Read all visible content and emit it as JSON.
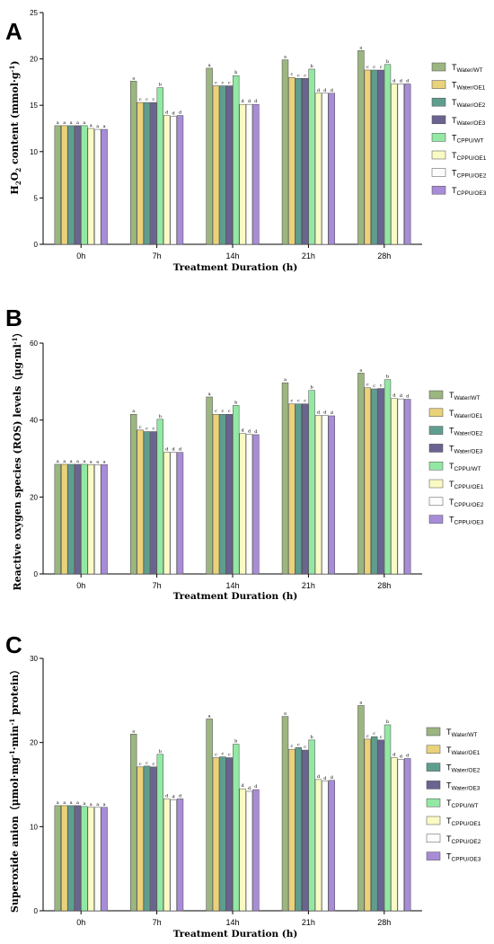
{
  "colors": {
    "Water/WT": "#9bb680",
    "Water/OE1": "#ead27a",
    "Water/OE2": "#5f9e8f",
    "Water/OE3": "#6a6491",
    "CPPU/WT": "#93e8a3",
    "CPPU/OE1": "#fafac4",
    "CPPU/OE2": "#fcfcfc",
    "CPPU/OE3": "#a88cd8"
  },
  "chart_data": [
    {
      "type": "bar",
      "panel": "A",
      "ylabel": "H2O2 content (mmol·g-1)",
      "ylabel_parts": {
        "a": "H",
        "b": "2",
        "c": "O",
        "d": "2",
        "e": " content (mmol·g",
        "f": "-1",
        "g": ")"
      },
      "xlabel": "Treatment Duration (h)",
      "categories": [
        "0h",
        "7h",
        "14h",
        "21h",
        "28h"
      ],
      "ylim": [
        0,
        25
      ],
      "yticks": [
        0,
        5,
        10,
        15,
        20,
        25
      ],
      "legend_position": "right",
      "series": [
        {
          "name": "Water/WT",
          "legend": {
            "main": "T",
            "sub": "Water/WT"
          },
          "colorKey": "Water/WT",
          "values": [
            12.8,
            17.6,
            19.0,
            19.9,
            20.9
          ],
          "labels": [
            "a",
            "a",
            "a",
            "a",
            "a"
          ]
        },
        {
          "name": "Water/OE1",
          "legend": {
            "main": "T",
            "sub": "Water/OE1"
          },
          "colorKey": "Water/OE1",
          "values": [
            12.8,
            15.3,
            17.1,
            18.0,
            18.8
          ],
          "labels": [
            "a",
            "c",
            "c",
            "c",
            "c"
          ]
        },
        {
          "name": "Water/OE2",
          "legend": {
            "main": "T",
            "sub": "Water/OE2"
          },
          "colorKey": "Water/OE2",
          "values": [
            12.8,
            15.3,
            17.1,
            17.9,
            18.8
          ],
          "labels": [
            "a",
            "c",
            "c",
            "c",
            "c"
          ]
        },
        {
          "name": "Water/OE3",
          "legend": {
            "main": "T",
            "sub": "Water/OE3"
          },
          "colorKey": "Water/OE3",
          "values": [
            12.8,
            15.3,
            17.1,
            17.9,
            18.8
          ],
          "labels": [
            "a",
            "c",
            "c",
            "c",
            "c"
          ]
        },
        {
          "name": "CPPU/WT",
          "legend": {
            "main": "T",
            "sub": "CPPU/WT"
          },
          "colorKey": "CPPU/WT",
          "values": [
            12.8,
            16.9,
            18.2,
            18.9,
            19.4
          ],
          "labels": [
            "a",
            "b",
            "b",
            "b",
            "b"
          ]
        },
        {
          "name": "CPPU/OE1",
          "legend": {
            "main": "T",
            "sub": "CPPU/OE1"
          },
          "colorKey": "CPPU/OE1",
          "values": [
            12.5,
            13.9,
            15.1,
            16.3,
            17.3
          ],
          "labels": [
            "a",
            "d",
            "d",
            "d",
            "d"
          ]
        },
        {
          "name": "CPPU/OE2",
          "legend": {
            "main": "T",
            "sub": "CPPU/OE2"
          },
          "colorKey": "CPPU/OE2",
          "values": [
            12.4,
            13.8,
            15.1,
            16.3,
            17.3
          ],
          "labels": [
            "a",
            "d",
            "d",
            "d",
            "d"
          ]
        },
        {
          "name": "CPPU/OE3",
          "legend": {
            "main": "T",
            "sub": "CPPU/OE3"
          },
          "colorKey": "CPPU/OE3",
          "values": [
            12.4,
            13.9,
            15.1,
            16.3,
            17.3
          ],
          "labels": [
            "a",
            "d",
            "d",
            "d",
            "d"
          ]
        }
      ]
    },
    {
      "type": "bar",
      "panel": "B",
      "ylabel": "Reactive oxygen species (ROS) levels（μg·ml-1）",
      "ylabel_parts": {
        "a": "Reactive oxygen species (ROS) levels（μg·ml",
        "b": "-1",
        "c": "）"
      },
      "xlabel": "Treatment Duration (h)",
      "categories": [
        "0h",
        "7h",
        "14h",
        "21h",
        "28h"
      ],
      "ylim": [
        0,
        60
      ],
      "yticks": [
        0,
        20,
        40,
        60
      ],
      "legend_position": "right",
      "series": [
        {
          "name": "Water/WT",
          "legend": {
            "main": "T",
            "sub": "Water/WT"
          },
          "colorKey": "Water/WT",
          "values": [
            28.5,
            41.5,
            46.0,
            49.7,
            52.2
          ],
          "labels": [
            "a",
            "a",
            "a",
            "a",
            "a"
          ]
        },
        {
          "name": "Water/OE1",
          "legend": {
            "main": "T",
            "sub": "Water/OE1"
          },
          "colorKey": "Water/OE1",
          "values": [
            28.5,
            37.4,
            41.5,
            44.2,
            48.4
          ],
          "labels": [
            "a",
            "c",
            "c",
            "c",
            "c"
          ]
        },
        {
          "name": "Water/OE2",
          "legend": {
            "main": "T",
            "sub": "Water/OE2"
          },
          "colorKey": "Water/OE2",
          "values": [
            28.5,
            37.0,
            41.5,
            44.2,
            48.1
          ],
          "labels": [
            "a",
            "c",
            "c",
            "c",
            "c"
          ]
        },
        {
          "name": "Water/OE3",
          "legend": {
            "main": "T",
            "sub": "Water/OE3"
          },
          "colorKey": "Water/OE3",
          "values": [
            28.5,
            37.0,
            41.5,
            44.2,
            48.2
          ],
          "labels": [
            "a",
            "c",
            "c",
            "c",
            "c"
          ]
        },
        {
          "name": "CPPU/WT",
          "legend": {
            "main": "T",
            "sub": "CPPU/WT"
          },
          "colorKey": "CPPU/WT",
          "values": [
            28.5,
            40.2,
            43.8,
            47.7,
            50.5
          ],
          "labels": [
            "a",
            "b",
            "b",
            "b",
            "b"
          ]
        },
        {
          "name": "CPPU/OE1",
          "legend": {
            "main": "T",
            "sub": "CPPU/OE1"
          },
          "colorKey": "CPPU/OE1",
          "values": [
            28.4,
            31.6,
            36.5,
            41.2,
            45.6
          ],
          "labels": [
            "a",
            "d",
            "d",
            "d",
            "d"
          ]
        },
        {
          "name": "CPPU/OE2",
          "legend": {
            "main": "T",
            "sub": "CPPU/OE2"
          },
          "colorKey": "CPPU/OE2",
          "values": [
            28.4,
            31.6,
            36.3,
            41.2,
            45.5
          ],
          "labels": [
            "a",
            "d",
            "d",
            "d",
            "d"
          ]
        },
        {
          "name": "CPPU/OE3",
          "legend": {
            "main": "T",
            "sub": "CPPU/OE3"
          },
          "colorKey": "CPPU/OE3",
          "values": [
            28.4,
            31.6,
            36.2,
            41.1,
            45.4
          ],
          "labels": [
            "a",
            "d",
            "d",
            "d",
            "d"
          ]
        }
      ]
    },
    {
      "type": "bar",
      "panel": "C",
      "ylabel": "Superoxide anion（μmol·mg-1·min-1 protein）",
      "ylabel_parts": {
        "a": "Superoxide anion（μmol·mg",
        "b": "-1",
        "c": "·min",
        "d": "-1",
        "e": " protein）"
      },
      "xlabel": "Treatment Duration (h)",
      "categories": [
        "0h",
        "7h",
        "14h",
        "21h",
        "28h"
      ],
      "ylim": [
        0,
        30
      ],
      "yticks": [
        0,
        10,
        20,
        30
      ],
      "legend_position": "right",
      "series": [
        {
          "name": "Water/WT",
          "legend": {
            "main": "T",
            "sub": "Water/WT"
          },
          "colorKey": "Water/WT",
          "values": [
            12.5,
            21.0,
            22.8,
            23.1,
            24.4
          ],
          "labels": [
            "a",
            "a",
            "a",
            "a",
            "a"
          ]
        },
        {
          "name": "Water/OE1",
          "legend": {
            "main": "T",
            "sub": "Water/OE1"
          },
          "colorKey": "Water/OE1",
          "values": [
            12.5,
            17.1,
            18.2,
            19.2,
            20.4
          ],
          "labels": [
            "a",
            "c",
            "c",
            "c",
            "c"
          ]
        },
        {
          "name": "Water/OE2",
          "legend": {
            "main": "T",
            "sub": "Water/OE2"
          },
          "colorKey": "Water/OE2",
          "values": [
            12.5,
            17.2,
            18.3,
            19.4,
            20.7
          ],
          "labels": [
            "a",
            "c",
            "c",
            "c",
            "c"
          ]
        },
        {
          "name": "Water/OE3",
          "legend": {
            "main": "T",
            "sub": "Water/OE3"
          },
          "colorKey": "Water/OE3",
          "values": [
            12.5,
            17.1,
            18.2,
            19.1,
            20.3
          ],
          "labels": [
            "a",
            "c",
            "c",
            "c",
            "c"
          ]
        },
        {
          "name": "CPPU/WT",
          "legend": {
            "main": "T",
            "sub": "CPPU/WT"
          },
          "colorKey": "CPPU/WT",
          "values": [
            12.4,
            18.6,
            19.8,
            20.3,
            22.1
          ],
          "labels": [
            "a",
            "b",
            "b",
            "b",
            "b"
          ]
        },
        {
          "name": "CPPU/OE1",
          "legend": {
            "main": "T",
            "sub": "CPPU/OE1"
          },
          "colorKey": "CPPU/OE1",
          "values": [
            12.3,
            13.3,
            14.5,
            15.6,
            18.2
          ],
          "labels": [
            "a",
            "d",
            "d",
            "d",
            "d"
          ]
        },
        {
          "name": "CPPU/OE2",
          "legend": {
            "main": "T",
            "sub": "CPPU/OE2"
          },
          "colorKey": "CPPU/OE2",
          "values": [
            12.3,
            13.2,
            14.2,
            15.4,
            18.0
          ],
          "labels": [
            "a",
            "d",
            "d",
            "d",
            "d"
          ]
        },
        {
          "name": "CPPU/OE3",
          "legend": {
            "main": "T",
            "sub": "CPPU/OE3"
          },
          "colorKey": "CPPU/OE3",
          "values": [
            12.3,
            13.3,
            14.4,
            15.5,
            18.1
          ],
          "labels": [
            "a",
            "d",
            "d",
            "d",
            "d"
          ]
        }
      ]
    }
  ]
}
